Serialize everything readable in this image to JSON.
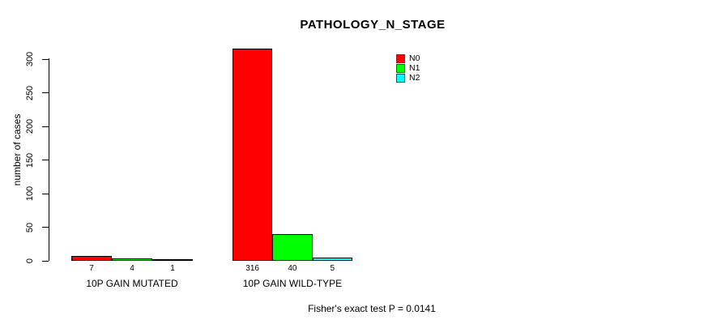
{
  "title": "PATHOLOGY_N_STAGE",
  "footer_annotation": "Fisher's exact test P = 0.0141",
  "chart_data": {
    "type": "bar",
    "title": "PATHOLOGY_N_STAGE",
    "ylabel": "number of cases",
    "xlabel": "",
    "categories": [
      "10P GAIN MUTATED",
      "10P GAIN WILD-TYPE"
    ],
    "series": [
      {
        "name": "N0",
        "color": "#ff0000",
        "values": [
          7,
          316
        ]
      },
      {
        "name": "N1",
        "color": "#00ff00",
        "values": [
          4,
          40
        ]
      },
      {
        "name": "N2",
        "color": "#00ffff",
        "values": [
          1,
          5
        ]
      }
    ],
    "bar_value_labels": [
      [
        "7",
        "4",
        "1"
      ],
      [
        "316",
        "40",
        "5"
      ]
    ],
    "ylim": [
      0,
      300
    ],
    "yticks": [
      0,
      50,
      100,
      150,
      200,
      250,
      300
    ],
    "grid": false,
    "legend_position": "top-right-inside",
    "annotation": "Fisher's exact test P = 0.0141"
  }
}
